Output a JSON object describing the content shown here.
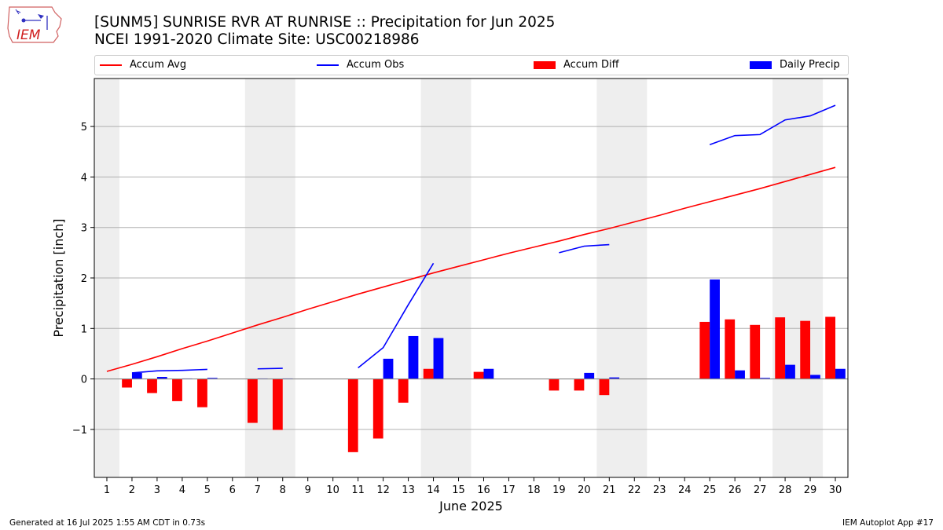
{
  "title_line1": "[SUNM5] SUNRISE RVR AT RUNRISE :: Precipitation for Jun 2025",
  "title_line2": "NCEI 1991-2020 Climate Site: USC00218986",
  "logo_text": "IEM",
  "legend": {
    "accum_avg": "Accum Avg",
    "accum_obs": "Accum Obs",
    "accum_diff": "Accum Diff",
    "daily_precip": "Daily Precip"
  },
  "footer": {
    "left": "Generated at 16 Jul 2025 1:55 AM CDT in 0.73s",
    "right": "IEM Autoplot App #17"
  },
  "colors": {
    "avg": "#ff0000",
    "obs": "#0000ff",
    "diff": "#ff0000",
    "daily": "#0000ff",
    "weekend_shade": "#eeeeee",
    "grid": "#b0b0b0"
  },
  "chart_data": {
    "type": "bar",
    "xlabel": "June 2025",
    "ylabel": "Precipitation [inch]",
    "xlim": [
      0.5,
      30.5
    ],
    "ylim": [
      -1.95,
      5.95
    ],
    "yticks": [
      -1,
      0,
      1,
      2,
      3,
      4,
      5
    ],
    "ytick_labels": [
      "−1",
      "0",
      "1",
      "2",
      "3",
      "4",
      "5"
    ],
    "days": [
      1,
      2,
      3,
      4,
      5,
      6,
      7,
      8,
      9,
      10,
      11,
      12,
      13,
      14,
      15,
      16,
      17,
      18,
      19,
      20,
      21,
      22,
      23,
      24,
      25,
      26,
      27,
      28,
      29,
      30
    ],
    "weekend_shading": [
      [
        0.5,
        1.5
      ],
      [
        6.5,
        8.5
      ],
      [
        13.5,
        15.5
      ],
      [
        20.5,
        22.5
      ],
      [
        27.5,
        29.5
      ]
    ],
    "grid": "horizontal",
    "series": [
      {
        "name": "Accum Avg",
        "kind": "line",
        "x": [
          1,
          2,
          3,
          4,
          5,
          6,
          7,
          8,
          9,
          10,
          11,
          12,
          13,
          14,
          15,
          16,
          17,
          18,
          19,
          20,
          21,
          22,
          23,
          24,
          25,
          26,
          27,
          28,
          29,
          30
        ],
        "values": [
          0.15,
          0.29,
          0.44,
          0.6,
          0.75,
          0.91,
          1.07,
          1.22,
          1.38,
          1.53,
          1.68,
          1.82,
          1.96,
          2.1,
          2.23,
          2.36,
          2.49,
          2.61,
          2.73,
          2.86,
          2.98,
          3.11,
          3.24,
          3.38,
          3.51,
          3.64,
          3.77,
          3.91,
          4.05,
          4.19
        ]
      },
      {
        "name": "Accum Obs",
        "kind": "line",
        "segments": [
          {
            "x": [
              2,
              3,
              4,
              5
            ],
            "values": [
              0.12,
              0.16,
              0.17,
              0.19
            ]
          },
          {
            "x": [
              7,
              8
            ],
            "values": [
              0.2,
              0.21
            ]
          },
          {
            "x": [
              11,
              12,
              13,
              14
            ],
            "values": [
              0.22,
              0.62,
              1.47,
              2.29
            ]
          },
          {
            "x": [
              19,
              20,
              21
            ],
            "values": [
              2.5,
              2.63,
              2.66
            ]
          },
          {
            "x": [
              25,
              26,
              27,
              28,
              29,
              30
            ],
            "values": [
              4.64,
              4.82,
              4.84,
              5.13,
              5.21,
              5.42
            ]
          }
        ]
      },
      {
        "name": "Accum Diff",
        "kind": "bar",
        "x": [
          2,
          3,
          4,
          5,
          7,
          8,
          11,
          12,
          13,
          14,
          16,
          19,
          20,
          21,
          25,
          26,
          27,
          28,
          29,
          30
        ],
        "values": [
          -0.17,
          -0.28,
          -0.44,
          -0.56,
          -0.87,
          -1.01,
          -1.45,
          -1.18,
          -0.47,
          0.2,
          0.14,
          -0.23,
          -0.23,
          -0.32,
          1.13,
          1.18,
          1.07,
          1.22,
          1.15,
          1.23
        ]
      },
      {
        "name": "Daily Precip",
        "kind": "bar",
        "x": [
          2,
          3,
          4,
          5,
          7,
          8,
          11,
          12,
          13,
          14,
          16,
          19,
          20,
          21,
          25,
          26,
          27,
          28,
          29,
          30
        ],
        "values": [
          0.12,
          0.04,
          0.01,
          0.02,
          0.01,
          0.01,
          0.0,
          0.4,
          0.85,
          0.81,
          0.2,
          0.0,
          0.12,
          0.03,
          1.97,
          0.17,
          0.02,
          0.28,
          0.08,
          0.2
        ]
      }
    ]
  }
}
